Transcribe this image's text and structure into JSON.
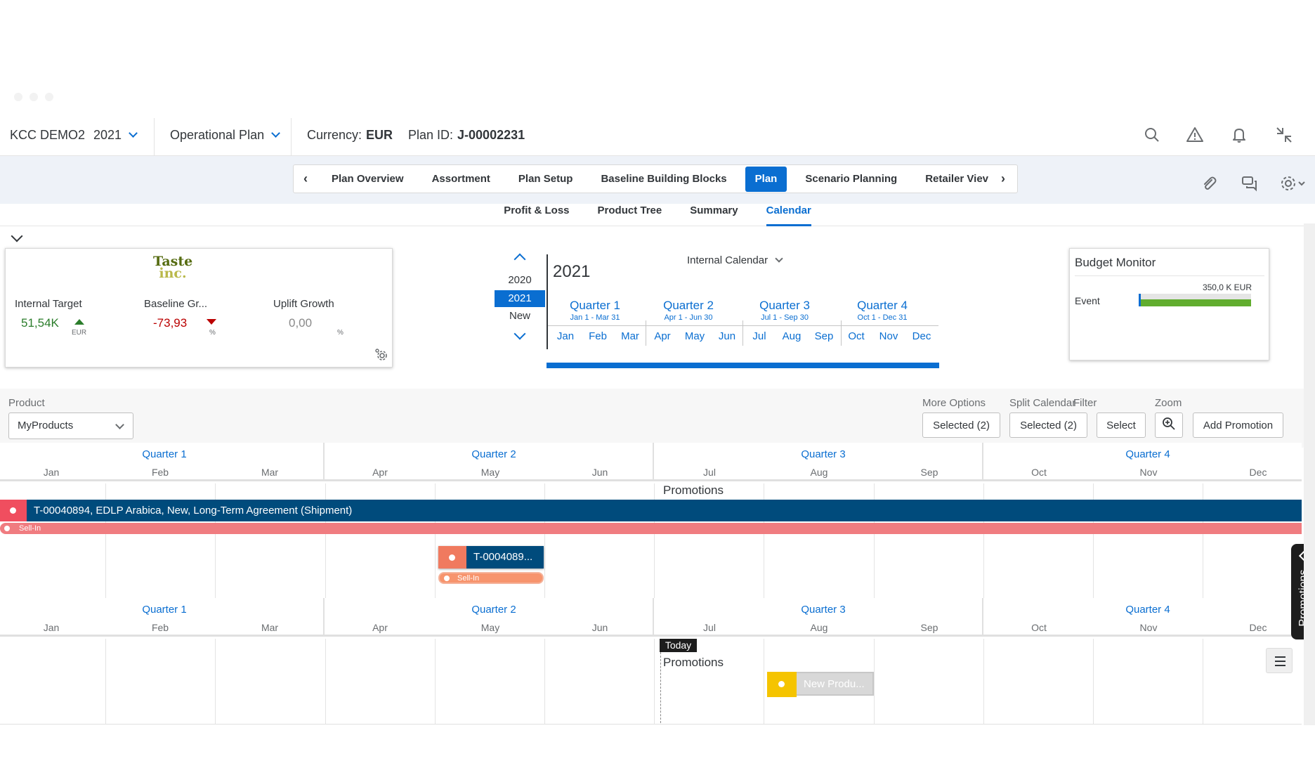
{
  "shell": {
    "company": "KCC DEMO2",
    "year": "2021",
    "plan_type": "Operational Plan",
    "currency_label": "Currency:",
    "currency_value": "EUR",
    "plan_id_label": "Plan ID:",
    "plan_id_value": "J-00002231",
    "icons": [
      "search-icon",
      "warning-icon",
      "bell-icon",
      "exit-fullscreen-icon"
    ]
  },
  "tabs": {
    "items": [
      "Plan Overview",
      "Assortment",
      "Plan Setup",
      "Baseline Building Blocks",
      "Plan",
      "Scenario Planning",
      "Retailer Viev"
    ],
    "active": "Plan",
    "icons": [
      "paperclip-icon",
      "chat-icon",
      "settings-icon"
    ]
  },
  "subtabs": {
    "items": [
      "Profit & Loss",
      "Product Tree",
      "Summary",
      "Calendar"
    ],
    "active": "Calendar"
  },
  "kpi": {
    "logo_line1": "Taste",
    "logo_line2": "inc.",
    "internal_target_label": "Internal Target",
    "internal_target_value": "51,54K",
    "internal_target_unit": "EUR",
    "baseline_label": "Baseline Gr...",
    "baseline_value": "-73,93",
    "baseline_unit": "%",
    "uplift_label": "Uplift Growth",
    "uplift_value": "0,00",
    "uplift_unit": "%",
    "colors": {
      "positive": "#2b7d2b",
      "negative": "#bb0000",
      "neutral": "#8a8a8a"
    }
  },
  "year_selector": {
    "years": [
      "2020",
      "2021",
      "New"
    ],
    "selected": "2021"
  },
  "overview": {
    "year": "2021",
    "calendar_type": "Internal Calendar",
    "quarters": [
      {
        "name": "Quarter 1",
        "range": "Jan 1 - Mar 31"
      },
      {
        "name": "Quarter 2",
        "range": "Apr 1 - Jun 30"
      },
      {
        "name": "Quarter 3",
        "range": "Jul 1 - Sep 30"
      },
      {
        "name": "Quarter 4",
        "range": "Oct 1 - Dec 31"
      }
    ],
    "months": [
      "Jan",
      "Feb",
      "Mar",
      "Apr",
      "May",
      "Jun",
      "Jul",
      "Aug",
      "Sep",
      "Oct",
      "Nov",
      "Dec"
    ]
  },
  "budget": {
    "title": "Budget Monitor",
    "amount": "350,0 K EUR",
    "event_label": "Event",
    "fill_fraction": 1.0,
    "colors": {
      "fill": "#61ad2e",
      "cap": "#0a6ed1"
    }
  },
  "filters": {
    "product_label": "Product",
    "product_value": "MyProducts",
    "more_options_label": "More Options",
    "more_options_value": "Selected (2)",
    "split_calendar_label": "Split Calendar",
    "split_calendar_value": "Selected (2)",
    "filter_label": "Filter",
    "filter_value": "Select",
    "zoom_label": "Zoom",
    "add_promotion": "Add Promotion"
  },
  "gantt": {
    "quarters": [
      "Quarter 1",
      "Quarter 2",
      "Quarter 3",
      "Quarter 4"
    ],
    "months": [
      "Jan",
      "Feb",
      "Mar",
      "Apr",
      "May",
      "Jun",
      "Jul",
      "Aug",
      "Sep",
      "Oct",
      "Nov",
      "Dec"
    ],
    "section_label": "Promotions",
    "main_promo": "T-00040894, EDLP Arabica, New, Long-Term Agreement (Shipment)",
    "sell_in": "Sell-In",
    "small_promo": "T-0004089...",
    "today": "Today",
    "new_promo": "New Produ...",
    "side_panel": "Promotions",
    "colors": {
      "promo": "#004b7c",
      "sellin": "#f07c80",
      "new": "#f5c400"
    }
  }
}
